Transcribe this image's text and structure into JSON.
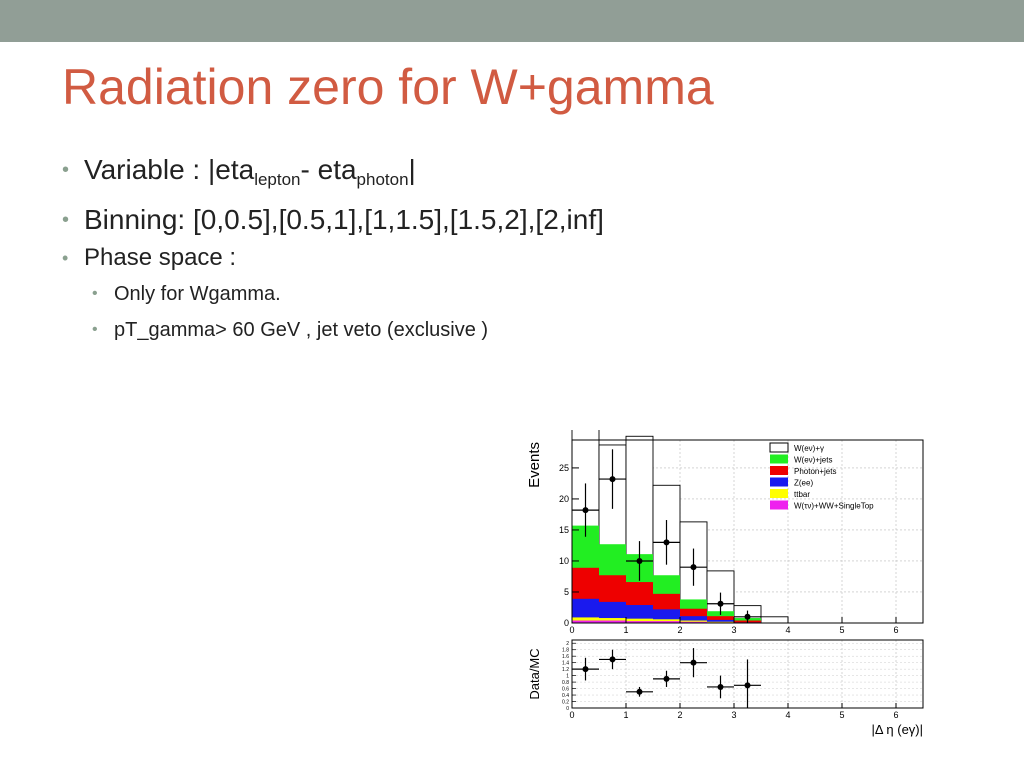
{
  "slide": {
    "title": "Radiation zero for W+gamma",
    "bullets": {
      "variable_prefix": "Variable : |eta",
      "variable_sub1": "lepton",
      "variable_mid": "- eta",
      "variable_sub2": "photon",
      "variable_suffix": "|",
      "binning": "Binning: [0,0.5],[0.5,1],[1,1.5],[1.5,2],[2,inf]",
      "phase_space": "Phase space :",
      "only_for": "Only for Wgamma.",
      "cuts": "pT_gamma> 60 GeV , jet veto (exclusive )"
    }
  },
  "chart_data": [
    {
      "type": "bar",
      "ylabel": "Events",
      "xlim": [
        0,
        6.5
      ],
      "ylim": [
        0,
        29.5
      ],
      "xticks": [
        "0",
        "1",
        "2",
        "3",
        "4",
        "5",
        "6"
      ],
      "yticks": [
        "0",
        "5",
        "10",
        "15",
        "20",
        "25"
      ],
      "grid": true,
      "legend_position": "top-right",
      "bin_edges": [
        0,
        0.5,
        1,
        1.5,
        2,
        2.5,
        3,
        3.5,
        4,
        4.5,
        5,
        5.5,
        6,
        6.5
      ],
      "series": [
        {
          "name": "W(eν)+γ",
          "color": "#ffffff",
          "values": [
            18,
            16,
            19,
            14.5,
            12.5,
            6.5,
            2,
            1,
            0,
            0,
            0,
            0,
            0
          ]
        },
        {
          "name": "W(eν)+jets",
          "color": "#22ee22",
          "values": [
            6.8,
            5,
            4.5,
            3,
            1.5,
            0.8,
            0.4,
            0,
            0,
            0,
            0,
            0,
            0
          ]
        },
        {
          "name": "Photon+jets",
          "color": "#ee0000",
          "values": [
            5,
            4.3,
            3.7,
            2.5,
            1.2,
            0.6,
            0.3,
            0,
            0,
            0,
            0,
            0,
            0
          ]
        },
        {
          "name": "Z(ee)",
          "color": "#1a1aee",
          "values": [
            3,
            2.6,
            2.2,
            1.6,
            0.7,
            0.3,
            0.1,
            0,
            0,
            0,
            0,
            0,
            0
          ]
        },
        {
          "name": "ttbar",
          "color": "#ffff00",
          "values": [
            0.5,
            0.4,
            0.4,
            0.3,
            0.2,
            0.1,
            0,
            0,
            0,
            0,
            0,
            0,
            0
          ]
        },
        {
          "name": "W(τν)+WW+SingleTop",
          "color": "#ee22ee",
          "values": [
            0.4,
            0.4,
            0.3,
            0.3,
            0.2,
            0.1,
            0,
            0,
            0,
            0,
            0,
            0,
            0
          ]
        }
      ],
      "data_points": [
        {
          "x": 0.25,
          "y": 18.2,
          "xerr": 0.25,
          "yerr": 4.3
        },
        {
          "x": 0.75,
          "y": 23.2,
          "xerr": 0.25,
          "yerr": 4.8
        },
        {
          "x": 1.25,
          "y": 10,
          "xerr": 0.25,
          "yerr": 3.2
        },
        {
          "x": 1.75,
          "y": 13,
          "xerr": 0.25,
          "yerr": 3.6
        },
        {
          "x": 2.25,
          "y": 9,
          "xerr": 0.25,
          "yerr": 3
        },
        {
          "x": 2.75,
          "y": 3.1,
          "xerr": 0.25,
          "yerr": 1.8
        },
        {
          "x": 3.25,
          "y": 1,
          "xerr": 0.25,
          "yerr": 1
        }
      ]
    },
    {
      "type": "scatter",
      "ylabel": "Data/MC",
      "xlabel": "|Δ η (eγ)|",
      "xlim": [
        0,
        6.5
      ],
      "ylim": [
        0,
        2.1
      ],
      "xticks": [
        "0",
        "1",
        "2",
        "3",
        "4",
        "5",
        "6"
      ],
      "yticks": [
        "0",
        "0.2",
        "0.4",
        "0.6",
        "0.8",
        "1",
        "1.2",
        "1.4",
        "1.6",
        "1.8",
        "2"
      ],
      "grid": true,
      "points": [
        {
          "x": 0.25,
          "y": 1.2,
          "xerr": 0.25,
          "yerr": 0.35
        },
        {
          "x": 0.75,
          "y": 1.5,
          "xerr": 0.25,
          "yerr": 0.3
        },
        {
          "x": 1.25,
          "y": 0.5,
          "xerr": 0.25,
          "yerr": 0.15
        },
        {
          "x": 1.75,
          "y": 0.9,
          "xerr": 0.25,
          "yerr": 0.25
        },
        {
          "x": 2.25,
          "y": 1.4,
          "xerr": 0.25,
          "yerr": 0.45
        },
        {
          "x": 2.75,
          "y": 0.65,
          "xerr": 0.25,
          "yerr": 0.35
        },
        {
          "x": 3.25,
          "y": 0.7,
          "xerr": 0.25,
          "yerr": 0.8
        }
      ]
    }
  ]
}
